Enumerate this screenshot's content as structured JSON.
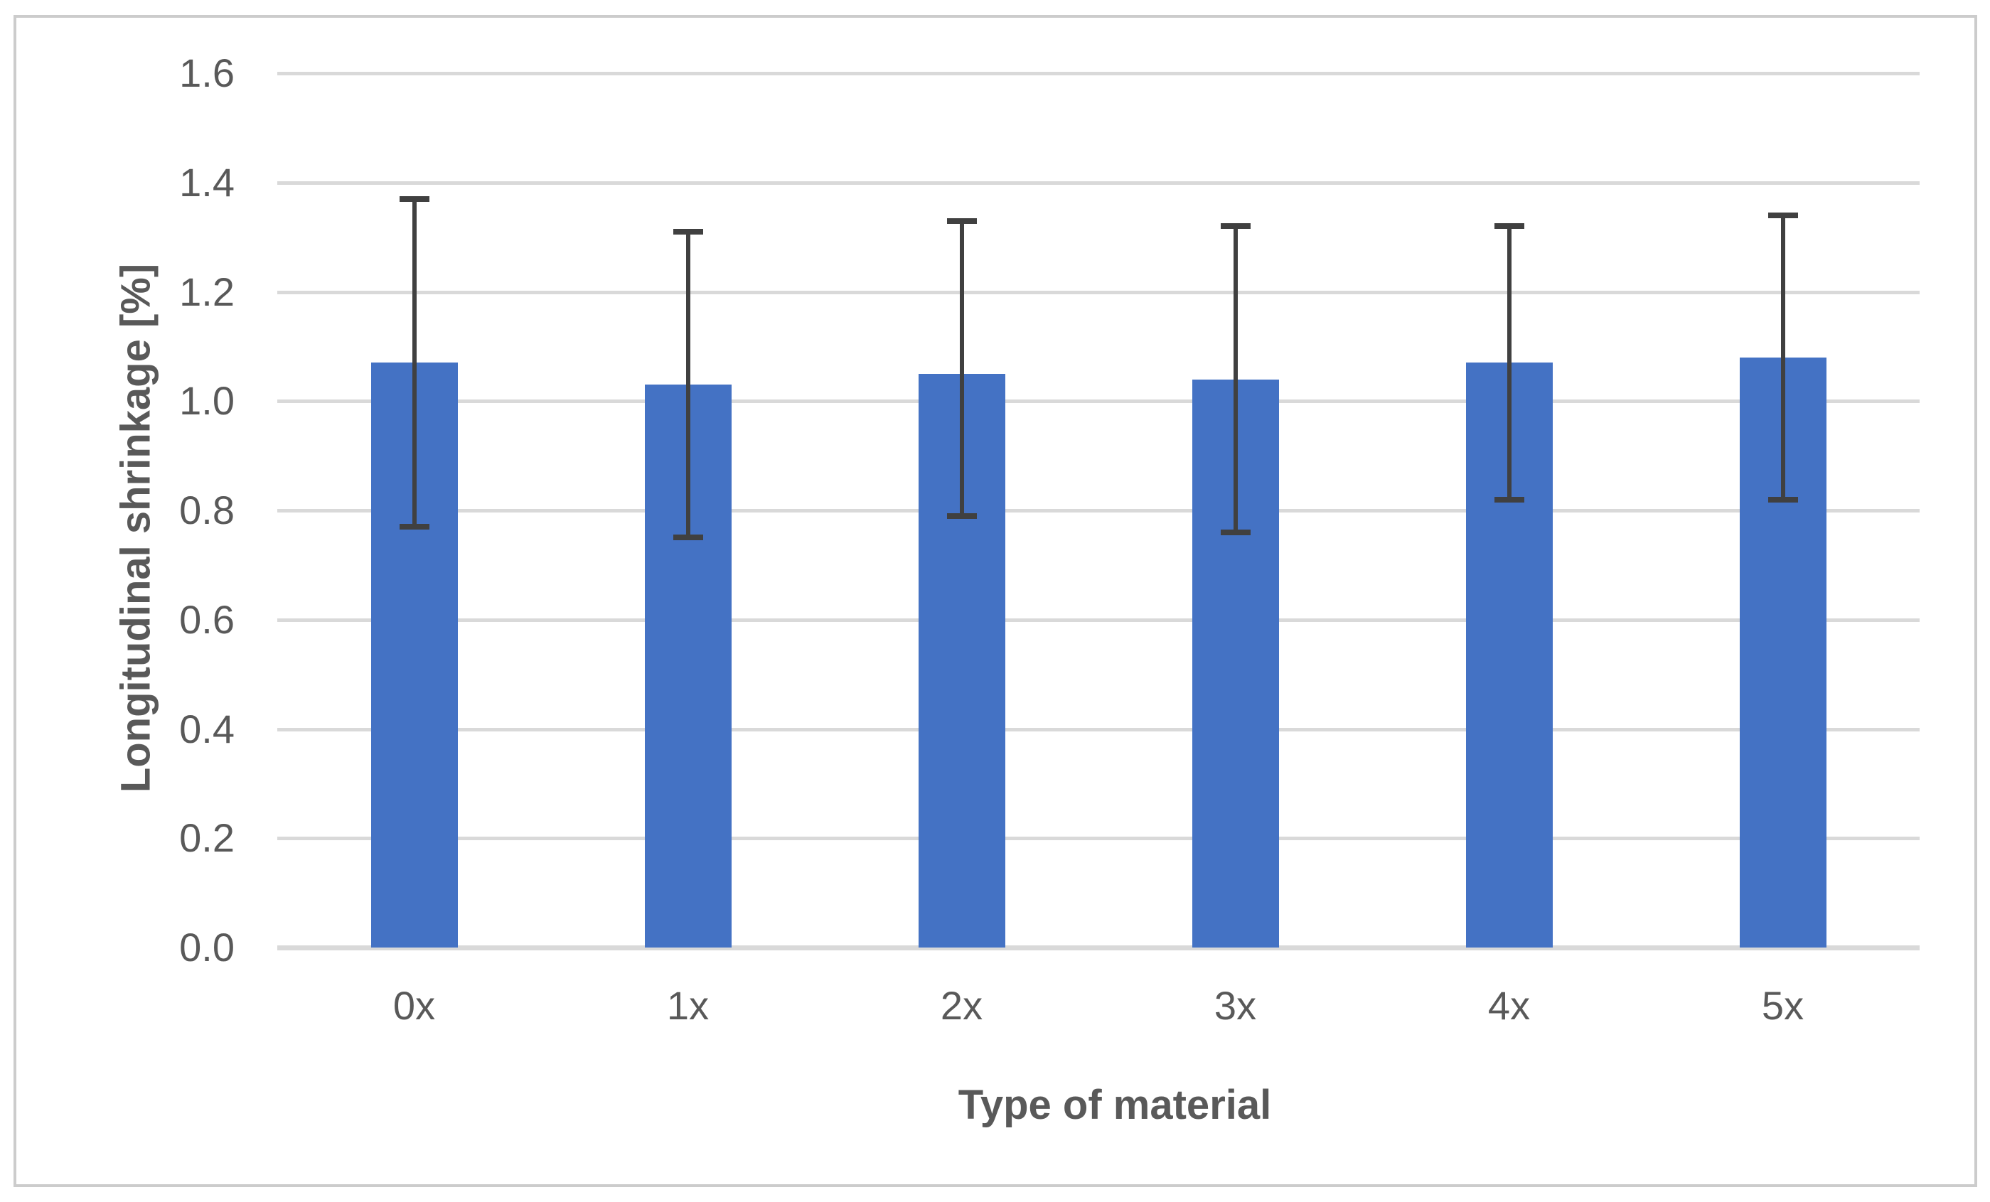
{
  "figure": {
    "y_axis_title": "Longitudinal shrinkage [%]",
    "x_axis_title": "Type of material"
  },
  "colors": {
    "bar_fill": "#4472c4",
    "error_bar": "#404040",
    "gridline": "#d9d9d9",
    "frame_border": "#cccccc",
    "text": "#595959",
    "background": "#ffffff"
  },
  "chart_data": {
    "type": "bar",
    "xlabel": "Type of material",
    "ylabel": "Longitudinal shrinkage [%]",
    "categories": [
      "0x",
      "1x",
      "2x",
      "3x",
      "4x",
      "5x"
    ],
    "values": [
      1.07,
      1.03,
      1.05,
      1.04,
      1.07,
      1.08
    ],
    "error_bars": {
      "top": [
        1.37,
        1.31,
        1.33,
        1.32,
        1.32,
        1.34
      ],
      "bottom": [
        0.77,
        0.75,
        0.79,
        0.76,
        0.82,
        0.82
      ]
    },
    "ylim": [
      0,
      1.6
    ],
    "ytick_step": 0.2,
    "ytick_labels": [
      "0.0",
      "0.2",
      "0.4",
      "0.6",
      "0.8",
      "1.0",
      "1.2",
      "1.4",
      "1.6"
    ],
    "grid": true,
    "legend": false
  }
}
